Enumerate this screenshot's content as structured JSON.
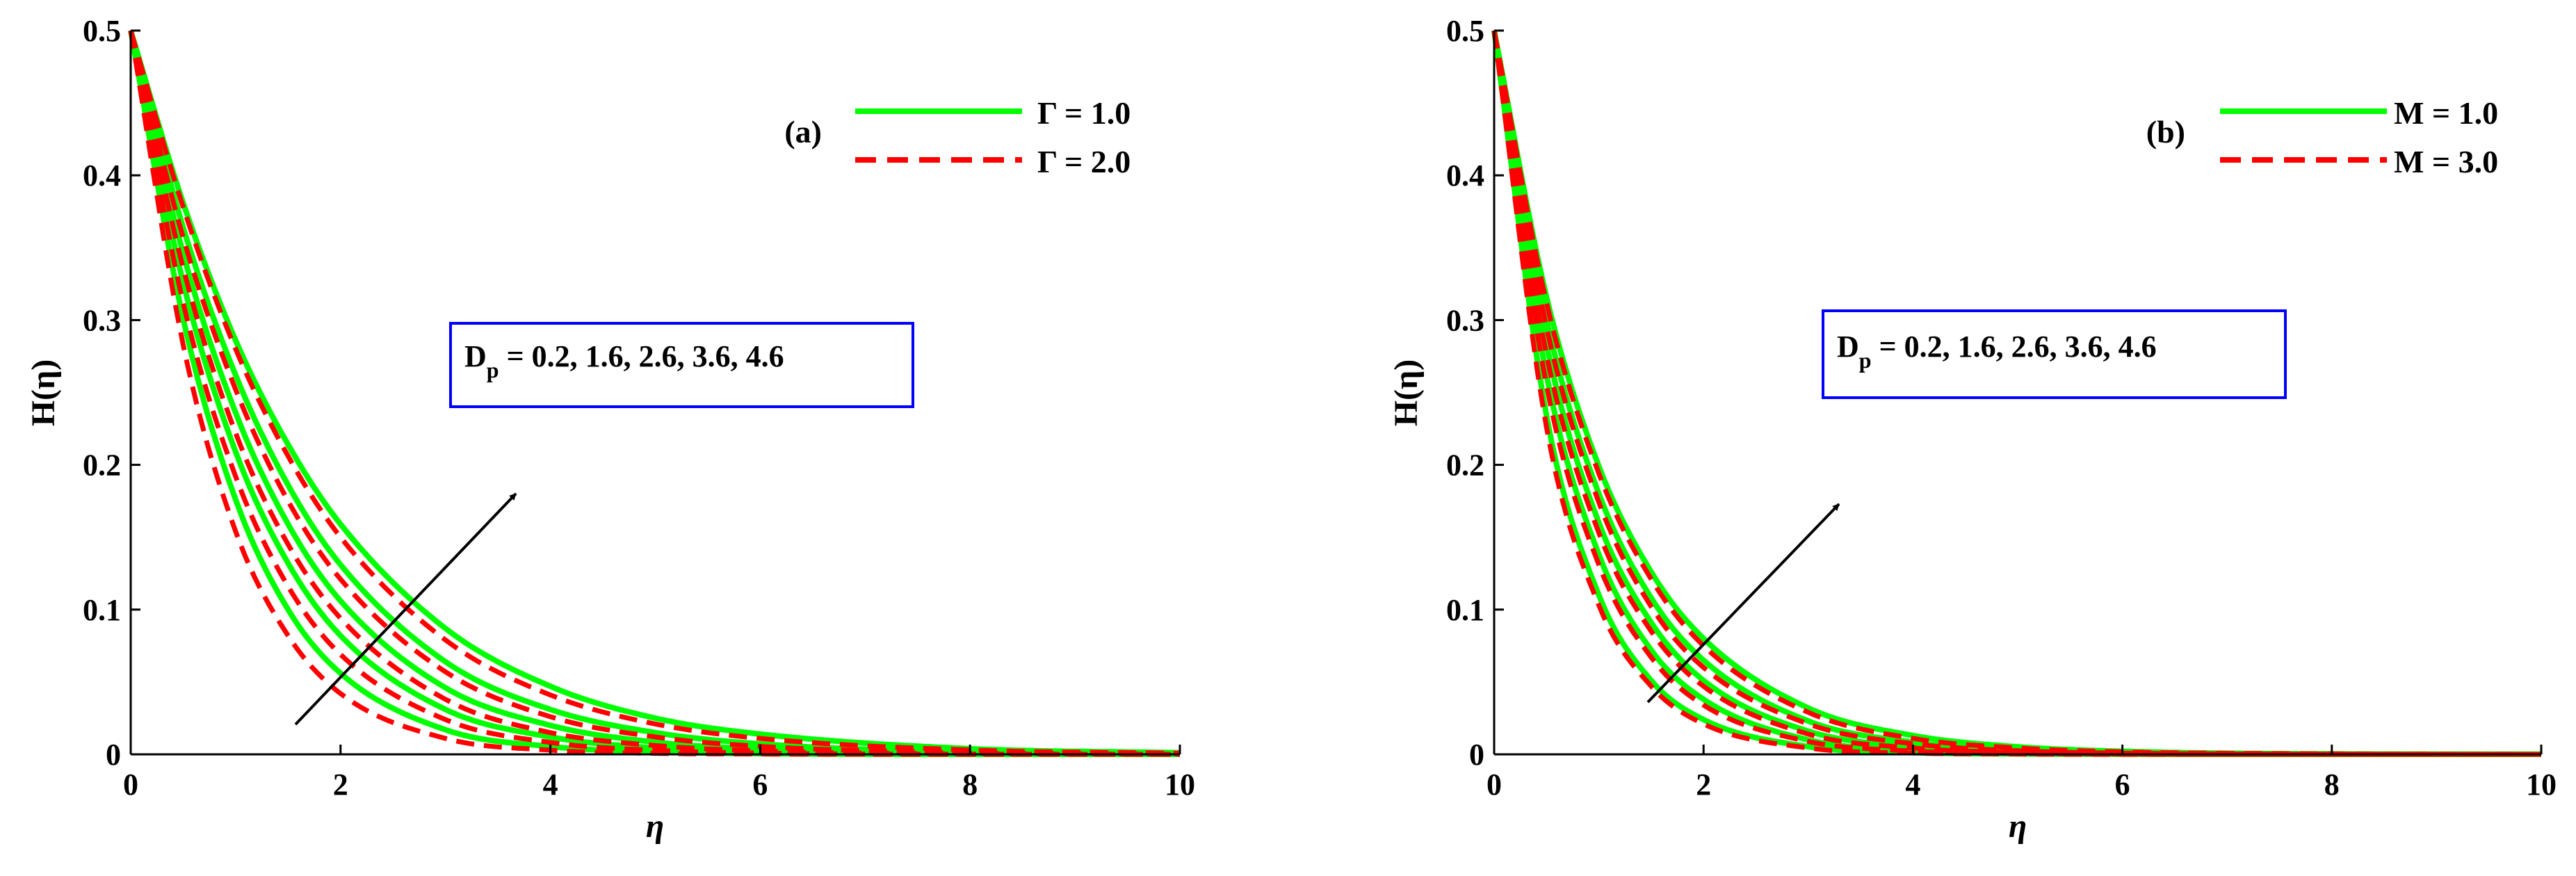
{
  "colors": {
    "green": "#00ff00",
    "red": "#ff0000",
    "box_border": "#0000ff",
    "arrow": "#000000"
  },
  "chart_data": [
    {
      "type": "line",
      "panel_label": "(a)",
      "xlabel": "η",
      "ylabel": "H(η)",
      "xlim": [
        0,
        10
      ],
      "ylim": [
        0,
        0.5
      ],
      "xticks": [
        "0",
        "2",
        "4",
        "6",
        "8",
        "10"
      ],
      "yticks": [
        "0",
        "0.1",
        "0.2",
        "0.3",
        "0.4",
        "0.5"
      ],
      "legend": [
        {
          "label": "Γ = 1.0",
          "color": "#00ff00",
          "style": "solid"
        },
        {
          "label": "Γ = 2.0",
          "color": "#ff0000",
          "style": "dashed"
        }
      ],
      "legend_position": "top-right",
      "annotation": {
        "main": "D",
        "sub": "p",
        "rest": " = 0.2, 1.6, 2.6, 3.6, 4.6"
      },
      "parameter_values": [
        0.2,
        1.6,
        2.6,
        3.6,
        4.6
      ],
      "x": [
        0,
        0.5,
        1,
        1.5,
        2,
        3,
        4,
        5,
        6,
        8,
        10
      ],
      "series": [
        {
          "group": "Γ = 1.0",
          "parameter": 0.2,
          "values": [
            0.5,
            0.301,
            0.176,
            0.1,
            0.056,
            0.017,
            0.0054,
            0.0017,
            0.0005,
            0,
            0
          ]
        },
        {
          "group": "Γ = 1.0",
          "parameter": 1.6,
          "values": [
            0.5,
            0.326,
            0.209,
            0.132,
            0.082,
            0.031,
            0.012,
            0.0044,
            0.0017,
            0.0002,
            0
          ]
        },
        {
          "group": "Γ = 1.0",
          "parameter": 2.6,
          "values": [
            0.5,
            0.346,
            0.236,
            0.159,
            0.106,
            0.046,
            0.02,
            0.0084,
            0.0036,
            0.0006,
            0.0001
          ]
        },
        {
          "group": "Γ = 1.0",
          "parameter": 3.6,
          "values": [
            0.5,
            0.364,
            0.262,
            0.186,
            0.131,
            0.064,
            0.031,
            0.015,
            0.0072,
            0.0016,
            0.0004
          ]
        },
        {
          "group": "Γ = 1.0",
          "parameter": 4.6,
          "values": [
            0.5,
            0.381,
            0.286,
            0.214,
            0.159,
            0.087,
            0.047,
            0.025,
            0.014,
            0.0039,
            0.0011
          ]
        },
        {
          "group": "Γ = 2.0",
          "parameter": 0.2,
          "values": [
            0.5,
            0.283,
            0.154,
            0.082,
            0.042,
            0.011,
            0.0029,
            0.0007,
            0.0002,
            0,
            0
          ]
        },
        {
          "group": "Γ = 2.0",
          "parameter": 1.6,
          "values": [
            0.5,
            0.312,
            0.192,
            0.116,
            0.069,
            0.024,
            0.0082,
            0.0028,
            0.0009,
            0.0001,
            0
          ]
        },
        {
          "group": "Γ = 2.0",
          "parameter": 2.6,
          "values": [
            0.5,
            0.336,
            0.222,
            0.145,
            0.094,
            0.038,
            0.015,
            0.0061,
            0.0024,
            0.0004,
            0.0001
          ]
        },
        {
          "group": "Γ = 2.0",
          "parameter": 3.6,
          "values": [
            0.5,
            0.357,
            0.252,
            0.175,
            0.121,
            0.057,
            0.026,
            0.012,
            0.0055,
            0.0012,
            0.0002
          ]
        },
        {
          "group": "Γ = 2.0",
          "parameter": 4.6,
          "values": [
            0.5,
            0.378,
            0.28,
            0.206,
            0.15,
            0.079,
            0.041,
            0.021,
            0.011,
            0.003,
            0.0008
          ]
        }
      ]
    },
    {
      "type": "line",
      "panel_label": "(b)",
      "xlabel": "η",
      "ylabel": "H(η)",
      "xlim": [
        0,
        10
      ],
      "ylim": [
        0,
        0.5
      ],
      "xticks": [
        "0",
        "2",
        "4",
        "6",
        "8",
        "10"
      ],
      "yticks": [
        "0",
        "0.1",
        "0.2",
        "0.3",
        "0.4",
        "0.5"
      ],
      "legend": [
        {
          "label": "M = 1.0",
          "color": "#00ff00",
          "style": "solid"
        },
        {
          "label": "M = 3.0",
          "color": "#ff0000",
          "style": "dashed"
        }
      ],
      "legend_position": "top-right",
      "annotation": {
        "main": "D",
        "sub": "p",
        "rest": " = 0.2, 1.6, 2.6, 3.6, 4.6"
      },
      "parameter_values": [
        0.2,
        1.6,
        2.6,
        3.6,
        4.6
      ],
      "x": [
        0,
        0.5,
        1,
        1.5,
        2,
        3,
        4,
        5,
        6,
        8,
        10
      ],
      "series": [
        {
          "group": "M = 1.0",
          "parameter": 0.2,
          "values": [
            0.5,
            0.234,
            0.11,
            0.051,
            0.024,
            0.0053,
            0.0012,
            0.0003,
            0.0001,
            0,
            0
          ]
        },
        {
          "group": "M = 1.0",
          "parameter": 1.6,
          "values": [
            0.5,
            0.262,
            0.138,
            0.072,
            0.038,
            0.01,
            0.0028,
            0.0008,
            0.0002,
            0,
            0
          ]
        },
        {
          "group": "M = 1.0",
          "parameter": 2.6,
          "values": [
            0.5,
            0.283,
            0.16,
            0.091,
            0.051,
            0.016,
            0.0052,
            0.0017,
            0.0005,
            0.0001,
            0
          ]
        },
        {
          "group": "M = 1.0",
          "parameter": 3.6,
          "values": [
            0.5,
            0.3,
            0.18,
            0.108,
            0.065,
            0.023,
            0.0084,
            0.0031,
            0.0011,
            0.0001,
            0
          ]
        },
        {
          "group": "M = 1.0",
          "parameter": 4.6,
          "values": [
            0.5,
            0.316,
            0.199,
            0.126,
            0.08,
            0.032,
            0.013,
            0.0052,
            0.0021,
            0.0003,
            0.0001
          ]
        },
        {
          "group": "M = 3.0",
          "parameter": 0.2,
          "values": [
            0.5,
            0.226,
            0.103,
            0.047,
            0.021,
            0.0044,
            0.0009,
            0.0002,
            0,
            0,
            0
          ]
        },
        {
          "group": "M = 3.0",
          "parameter": 1.6,
          "values": [
            0.5,
            0.255,
            0.131,
            0.067,
            0.034,
            0.0089,
            0.0023,
            0.0006,
            0.0002,
            0,
            0
          ]
        },
        {
          "group": "M = 3.0",
          "parameter": 2.6,
          "values": [
            0.5,
            0.276,
            0.153,
            0.085,
            0.047,
            0.014,
            0.0044,
            0.0013,
            0.0004,
            0,
            0
          ]
        },
        {
          "group": "M = 3.0",
          "parameter": 3.6,
          "values": [
            0.5,
            0.295,
            0.174,
            0.102,
            0.06,
            0.021,
            0.0073,
            0.0025,
            0.0009,
            0.0001,
            0
          ]
        },
        {
          "group": "M = 3.0",
          "parameter": 4.6,
          "values": [
            0.5,
            0.312,
            0.194,
            0.121,
            0.075,
            0.029,
            0.011,
            0.0044,
            0.0017,
            0.0003,
            0
          ]
        }
      ]
    }
  ]
}
